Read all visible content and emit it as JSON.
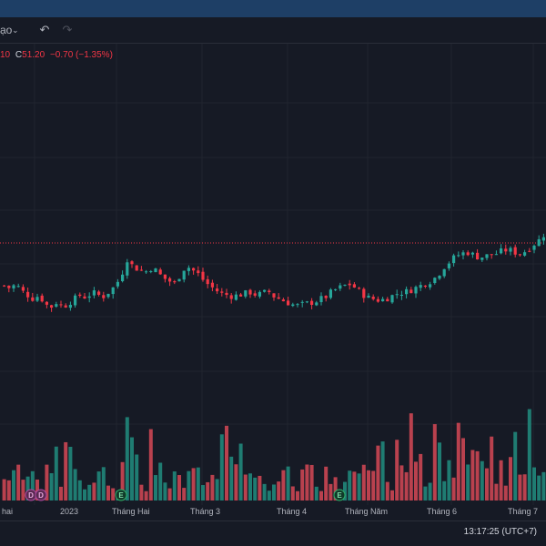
{
  "toolbar": {
    "symbol_fragment": "ạo",
    "chevron": "⌄",
    "undo_icon": "↶",
    "redo_icon": "↷"
  },
  "legend": {
    "prev_fragment": "10",
    "close_label": "C",
    "close_value": "51.20",
    "change": "−0.70",
    "change_pct": "(−1.35%)"
  },
  "xaxis": {
    "labels": [
      "hai",
      "2023",
      "Tháng Hai",
      "Tháng 3",
      "Tháng 4",
      "Tháng Năm",
      "Tháng 6",
      "Tháng 7"
    ]
  },
  "markers": [
    {
      "letter": "D",
      "kind": "dividend"
    },
    {
      "letter": "D",
      "kind": "dividend"
    },
    {
      "letter": "E",
      "kind": "earnings"
    },
    {
      "letter": "E",
      "kind": "earnings"
    }
  ],
  "clock": "13:17:25 (UTC+7)",
  "colors": {
    "up": "#26a69a",
    "down": "#f23645",
    "vol_up": "#1f7c72",
    "vol_down": "#b9414e",
    "price_line": "#f23645",
    "grid": "#20242f",
    "background": "#161a25"
  },
  "chart_data": {
    "type": "candlestick",
    "price_line_visible": true,
    "grid": true,
    "series": [
      {
        "name": "price",
        "close_path_relative": [
          0.62,
          0.6,
          0.63,
          0.58,
          0.55,
          0.52,
          0.55,
          0.48,
          0.46,
          0.5,
          0.46,
          0.49,
          0.52,
          0.55,
          0.53,
          0.57,
          0.55,
          0.54,
          0.58,
          0.62,
          0.7,
          0.82,
          0.76,
          0.74,
          0.72,
          0.75,
          0.73,
          0.68,
          0.66,
          0.63,
          0.7,
          0.77,
          0.74,
          0.71,
          0.66,
          0.62,
          0.59,
          0.56,
          0.55,
          0.54,
          0.55,
          0.56,
          0.57,
          0.55,
          0.56,
          0.58,
          0.54,
          0.52,
          0.5,
          0.48,
          0.47,
          0.48,
          0.49,
          0.5,
          0.52,
          0.54,
          0.58,
          0.6,
          0.62,
          0.63,
          0.6,
          0.56,
          0.53,
          0.52,
          0.51,
          0.52,
          0.54,
          0.56,
          0.57,
          0.58,
          0.6,
          0.62,
          0.64,
          0.66,
          0.7,
          0.76,
          0.8,
          0.84,
          0.86,
          0.87,
          0.85,
          0.83,
          0.84,
          0.85,
          0.86,
          0.88,
          0.89,
          0.87,
          0.86,
          0.88,
          0.92,
          0.95,
          1.0
        ]
      }
    ]
  }
}
